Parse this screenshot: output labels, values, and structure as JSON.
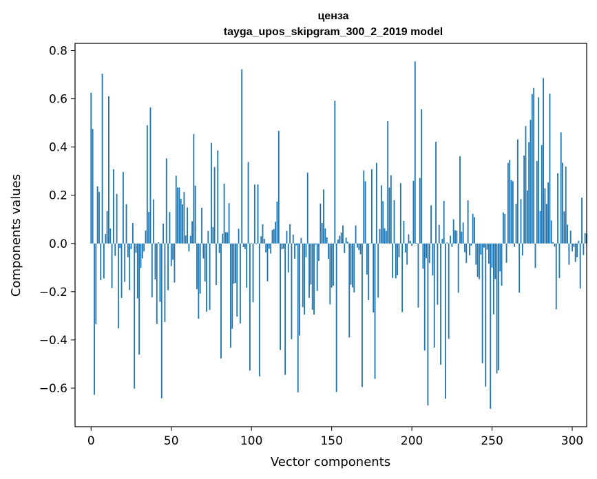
{
  "chart_data": {
    "type": "bar",
    "title": "ценза",
    "subtitle": "tayga_upos_skipgram_300_2_2019 model",
    "xlabel": "Vector components",
    "ylabel": "Components values",
    "xlim": [
      -10,
      309
    ],
    "ylim": [
      -0.76,
      0.83
    ],
    "xticks": [
      0,
      50,
      100,
      150,
      200,
      250,
      300
    ],
    "yticks": [
      -0.6,
      -0.4,
      -0.2,
      0.0,
      0.2,
      0.4,
      0.6,
      0.8
    ],
    "bar_color": "#1f77b4",
    "grid": false,
    "legend": "none",
    "values": [
      0.625,
      0.475,
      -0.628,
      -0.335,
      0.237,
      0.214,
      -0.152,
      0.704,
      -0.145,
      0.039,
      0.135,
      0.611,
      0.062,
      -0.185,
      0.308,
      -0.051,
      0.206,
      -0.352,
      -0.019,
      -0.226,
      0.296,
      -0.159,
      0.163,
      -0.057,
      -0.193,
      -0.023,
      0.085,
      -0.602,
      -0.039,
      -0.228,
      -0.461,
      -0.102,
      -0.062,
      -0.033,
      0.054,
      0.49,
      0.131,
      0.564,
      -0.224,
      0.183,
      -0.149,
      -0.334,
      0.005,
      -0.242,
      -0.642,
      0.082,
      -0.326,
      0.353,
      -0.194,
      0.13,
      -0.094,
      -0.068,
      -0.162,
      0.281,
      0.232,
      0.232,
      0.185,
      0.162,
      0.213,
      0.033,
      0.149,
      -0.033,
      0.031,
      0.092,
      0.454,
      0.24,
      -0.19,
      -0.312,
      -0.208,
      0.148,
      -0.062,
      -0.158,
      -0.283,
      0.052,
      -0.276,
      0.417,
      0.068,
      0.317,
      -0.172,
      0.386,
      -0.04,
      -0.477,
      0.04,
      0.248,
      0.047,
      0.046,
      0.167,
      -0.433,
      -0.354,
      -0.167,
      -0.164,
      -0.303,
      0.061,
      -0.332,
      0.723,
      -0.015,
      -0.023,
      -0.184,
      0.338,
      -0.527,
      0.002,
      -0.244,
      0.244,
      -0.003,
      0.245,
      -0.551,
      0.03,
      0.08,
      0.019,
      -0.037,
      -0.157,
      -0.022,
      -0.042,
      0.056,
      0.06,
      0.09,
      0.174,
      0.467,
      -0.442,
      -0.024,
      -0.022,
      -0.545,
      0.052,
      -0.12,
      0.08,
      -0.397,
      0.037,
      -0.063,
      -0.008,
      -0.618,
      -0.382,
      0.023,
      -0.264,
      -0.295,
      -0.057,
      0.294,
      -0.226,
      -0.17,
      -0.275,
      -0.295,
      -0.005,
      -0.197,
      -0.072,
      0.166,
      0.085,
      0.224,
      0.063,
      0.025,
      -0.064,
      -0.253,
      -0.183,
      -0.175,
      0.592,
      -0.616,
      0.016,
      0.032,
      0.045,
      0.075,
      -0.04,
      0.024,
      0.007,
      -0.39,
      -0.171,
      -0.182,
      -0.203,
      0.075,
      -0.017,
      -0.027,
      -0.045,
      -0.595,
      0.303,
      0.258,
      -0.129,
      -0.235,
      0.001,
      0.308,
      -0.286,
      -0.562,
      0.334,
      -0.225,
      0.06,
      0.241,
      0.175,
      0.063,
      0.052,
      0.507,
      0.232,
      0.283,
      -0.143,
      0.18,
      -0.145,
      -0.132,
      -0.057,
      0.25,
      -0.285,
      0.094,
      -0.037,
      -0.088,
      0.038,
      0.011,
      -0.01,
      0.26,
      0.755,
      0.002,
      -0.266,
      0.272,
      0.557,
      -0.105,
      -0.444,
      -0.061,
      -0.672,
      -0.081,
      0.158,
      -0.133,
      -0.432,
      0.422,
      -0.254,
      0.077,
      -0.503,
      0.019,
      0.176,
      -0.644,
      0.004,
      -0.396,
      0.032,
      -0.014,
      0.1,
      0.055,
      0.053,
      -0.204,
      0.362,
      0.049,
      0.087,
      -0.036,
      -0.081,
      0.179,
      -0.049,
      -0.009,
      0.123,
      0.109,
      -0.088,
      -0.139,
      -0.148,
      -0.046,
      -0.497,
      -0.017,
      -0.594,
      -0.025,
      -0.084,
      -0.686,
      -0.1,
      -0.294,
      -0.148,
      -0.539,
      -0.526,
      -0.116,
      -0.175,
      0.129,
      0.122,
      -0.08,
      0.334,
      0.347,
      0.263,
      0.258,
      -0.014,
      0.165,
      0.432,
      -0.204,
      0.184,
      -0.05,
      0.365,
      0.487,
      0.22,
      0.42,
      0.513,
      0.62,
      0.645,
      -0.102,
      0.342,
      0.606,
      0.135,
      0.408,
      0.686,
      0.229,
      0.164,
      0.253,
      0.622,
      0.095,
      0.005,
      -0.013,
      -0.273,
      0.291,
      -0.143,
      0.461,
      0.335,
      0.133,
      0.319,
      0.078,
      -0.088,
      0.053,
      -0.033,
      -0.014,
      -0.077,
      -0.057,
      0.011,
      -0.187,
      0.19,
      -0.048,
      0.043,
      0.041
    ]
  }
}
